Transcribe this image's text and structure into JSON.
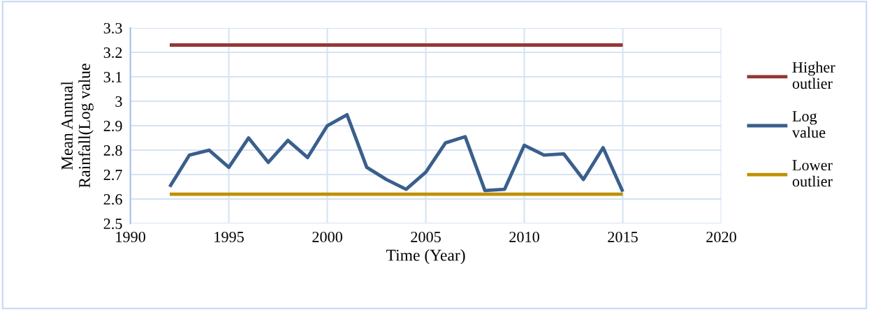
{
  "chart_data": {
    "type": "line",
    "xlabel": "Time (Year)",
    "ylabel": "Mean Annual\nRainfall(Log value",
    "x": [
      1992,
      1993,
      1994,
      1995,
      1996,
      1997,
      1998,
      1999,
      2000,
      2001,
      2002,
      2003,
      2004,
      2005,
      2006,
      2007,
      2008,
      2009,
      2010,
      2011,
      2012,
      2013,
      2014,
      2015
    ],
    "series": [
      {
        "name": "Higher outlier",
        "color": "#953735",
        "values": [
          3.23,
          3.23,
          3.23,
          3.23,
          3.23,
          3.23,
          3.23,
          3.23,
          3.23,
          3.23,
          3.23,
          3.23,
          3.23,
          3.23,
          3.23,
          3.23,
          3.23,
          3.23,
          3.23,
          3.23,
          3.23,
          3.23,
          3.23,
          3.23
        ]
      },
      {
        "name": "Log value",
        "color": "#3a5f8c",
        "values": [
          2.65,
          2.78,
          2.8,
          2.73,
          2.85,
          2.75,
          2.84,
          2.77,
          2.9,
          2.945,
          2.73,
          2.68,
          2.64,
          2.71,
          2.83,
          2.855,
          2.635,
          2.64,
          2.82,
          2.78,
          2.785,
          2.68,
          2.81,
          2.63
        ]
      },
      {
        "name": "Lower outlier",
        "color": "#c09000",
        "values": [
          2.62,
          2.62,
          2.62,
          2.62,
          2.62,
          2.62,
          2.62,
          2.62,
          2.62,
          2.62,
          2.62,
          2.62,
          2.62,
          2.62,
          2.62,
          2.62,
          2.62,
          2.62,
          2.62,
          2.62,
          2.62,
          2.62,
          2.62,
          2.62
        ]
      }
    ],
    "xlim": [
      1990,
      2020
    ],
    "xticks": [
      1990,
      1995,
      2000,
      2005,
      2010,
      2015,
      2020
    ],
    "ylim": [
      2.5,
      3.3
    ],
    "yticks": [
      2.5,
      2.6,
      2.7,
      2.8,
      2.9,
      3,
      3.1,
      3.2,
      3.3
    ],
    "grid": true,
    "legend": "right",
    "marker": "none",
    "line_style": "solid"
  }
}
